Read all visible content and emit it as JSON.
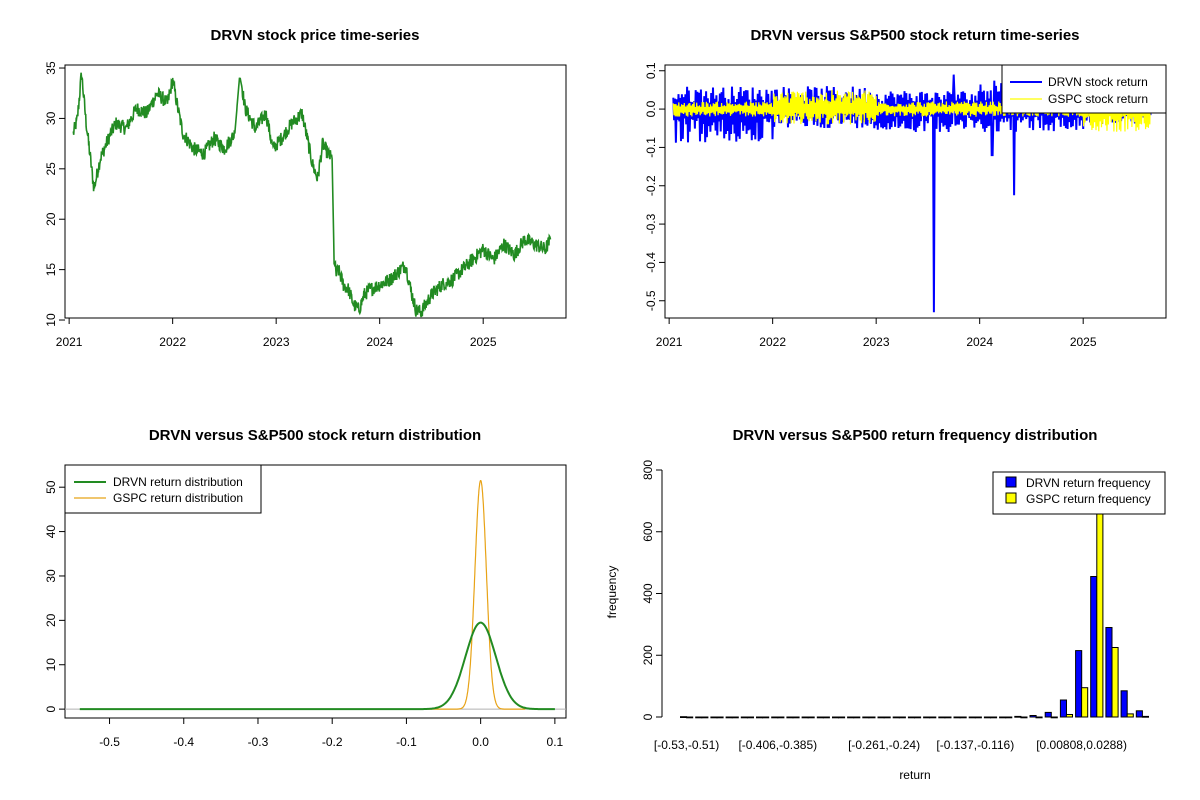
{
  "colors": {
    "price": "#228B22",
    "drvn_return": "#0000FF",
    "gspc_return": "#FFFF00",
    "drvn_density": "#228B22",
    "gspc_density": "#E8A317",
    "drvn_bar": "#0000FF",
    "gspc_bar": "#FFFF00"
  },
  "chart_data": [
    {
      "id": "price",
      "type": "line",
      "title": "DRVN stock price time-series",
      "xlabel": "",
      "ylabel": "",
      "x_ticks": [
        "2021",
        "2022",
        "2023",
        "2024",
        "2025"
      ],
      "y_ticks": [
        "10",
        "15",
        "20",
        "25",
        "30",
        "35"
      ],
      "xlim": [
        2020.96,
        2025.8
      ],
      "ylim": [
        10.2,
        35.3
      ],
      "series": [
        {
          "name": "DRVN",
          "x": [
            2021.04,
            2021.08,
            2021.12,
            2021.16,
            2021.2,
            2021.24,
            2021.3,
            2021.38,
            2021.45,
            2021.55,
            2021.65,
            2021.75,
            2021.85,
            2021.95,
            2022.0,
            2022.05,
            2022.1,
            2022.2,
            2022.3,
            2022.4,
            2022.5,
            2022.6,
            2022.65,
            2022.7,
            2022.8,
            2022.9,
            2022.97,
            2023.05,
            2023.15,
            2023.25,
            2023.3,
            2023.35,
            2023.4,
            2023.45,
            2023.5,
            2023.54,
            2023.56,
            2023.58,
            2023.6,
            2023.65,
            2023.7,
            2023.75,
            2023.8,
            2023.85,
            2023.9,
            2024.0,
            2024.1,
            2024.2,
            2024.25,
            2024.3,
            2024.35,
            2024.4,
            2024.5,
            2024.6,
            2024.7,
            2024.8,
            2024.9,
            2025.0,
            2025.1,
            2025.2,
            2025.3,
            2025.4,
            2025.5,
            2025.6,
            2025.65
          ],
          "y": [
            28.5,
            30.0,
            34.5,
            30.0,
            26.5,
            23.0,
            26.0,
            28.0,
            29.5,
            29.0,
            31.0,
            30.5,
            32.5,
            31.5,
            33.8,
            31.0,
            28.5,
            27.0,
            26.5,
            28.0,
            27.0,
            28.5,
            34.5,
            31.0,
            29.0,
            30.5,
            27.0,
            28.0,
            29.5,
            30.5,
            28.0,
            25.5,
            24.0,
            27.5,
            26.5,
            26.0,
            16.0,
            14.5,
            15.0,
            13.5,
            13.0,
            11.5,
            11.0,
            12.5,
            13.0,
            13.5,
            14.0,
            15.0,
            15.5,
            13.0,
            11.0,
            10.8,
            12.5,
            13.5,
            14.0,
            15.0,
            16.0,
            17.0,
            16.0,
            17.5,
            16.5,
            18.0,
            17.5,
            17.0,
            18.0
          ]
        }
      ]
    },
    {
      "id": "returns",
      "type": "line",
      "title": "DRVN versus S&P500 stock return time-series",
      "xlabel": "",
      "ylabel": "",
      "x_ticks": [
        "2021",
        "2022",
        "2023",
        "2024",
        "2025"
      ],
      "y_ticks": [
        "-0.5",
        "-0.4",
        "-0.3",
        "-0.2",
        "-0.1",
        "0.0",
        "0.1"
      ],
      "xlim": [
        2020.96,
        2025.8
      ],
      "ylim": [
        -0.545,
        0.115
      ],
      "legend": {
        "position": "top-right",
        "entries": [
          "DRVN stock return",
          "GSPC stock return"
        ]
      },
      "series": [
        {
          "name": "DRVN stock return",
          "typical_range_by_year": {
            "2021": [
              -0.09,
              0.06
            ],
            "2022": [
              -0.05,
              0.06
            ],
            "2023": [
              -0.06,
              0.05
            ],
            "2024": [
              -0.06,
              0.09
            ],
            "2025": [
              -0.04,
              0.04
            ]
          },
          "spikes": [
            {
              "x": 2023.56,
              "y": -0.53
            },
            {
              "x": 2023.75,
              "y": 0.09
            },
            {
              "x": 2024.12,
              "y": -0.12
            },
            {
              "x": 2024.33,
              "y": -0.225
            }
          ]
        },
        {
          "name": "GSPC stock return",
          "typical_range_by_year": {
            "2021": [
              -0.02,
              0.02
            ],
            "2022": [
              -0.04,
              0.05
            ],
            "2023": [
              -0.02,
              0.02
            ],
            "2024": [
              -0.02,
              0.02
            ],
            "2025": [
              -0.06,
              0.05
            ]
          }
        }
      ]
    },
    {
      "id": "density",
      "type": "line",
      "title": "DRVN versus S&P500 stock return distribution",
      "xlabel": "",
      "ylabel": "",
      "x_ticks": [
        "-0.5",
        "-0.4",
        "-0.3",
        "-0.2",
        "-0.1",
        "0.0",
        "0.1"
      ],
      "y_ticks": [
        "0",
        "10",
        "20",
        "30",
        "40",
        "50"
      ],
      "xlim": [
        -0.56,
        0.115
      ],
      "ylim": [
        -2,
        55
      ],
      "legend": {
        "position": "top-left",
        "entries": [
          "DRVN return distribution",
          "GSPC return distribution"
        ]
      },
      "series": [
        {
          "name": "DRVN return distribution",
          "peak_x": 0.0,
          "peak_y": 19.5,
          "spread": 0.0205
        },
        {
          "name": "GSPC return distribution",
          "peak_x": 0.0,
          "peak_y": 51.5,
          "spread": 0.0077
        }
      ]
    },
    {
      "id": "hist",
      "type": "bar",
      "title": "DRVN versus S&P500 return frequency distribution",
      "xlabel": "return",
      "ylabel": "frequency",
      "x_tick_labels": [
        "[-0.53,-0.51)",
        "[-0.406,-0.385)",
        "[-0.261,-0.24)",
        "[-0.137,-0.116)",
        "[0.00808,0.0288)"
      ],
      "x_tick_bins": [
        0,
        6,
        13,
        19,
        26
      ],
      "y_ticks": [
        "0",
        "200",
        "400",
        "600",
        "800"
      ],
      "ylim": [
        0,
        800
      ],
      "legend": {
        "position": "top-right",
        "entries": [
          "DRVN return frequency",
          "GSPC return frequency"
        ]
      },
      "bin_count": 31,
      "series": [
        {
          "name": "DRVN return frequency",
          "values": [
            1,
            0,
            0,
            0,
            0,
            0,
            0,
            0,
            0,
            0,
            0,
            0,
            0,
            0,
            0,
            0,
            0,
            0,
            0,
            0,
            0,
            0,
            2,
            5,
            15,
            55,
            215,
            455,
            290,
            85,
            20
          ]
        },
        {
          "name": "GSPC return frequency",
          "values": [
            0,
            0,
            0,
            0,
            0,
            0,
            0,
            0,
            0,
            0,
            0,
            0,
            0,
            0,
            0,
            0,
            0,
            0,
            0,
            0,
            0,
            0,
            0,
            0,
            0,
            8,
            95,
            700,
            225,
            10,
            2
          ]
        }
      ]
    }
  ]
}
